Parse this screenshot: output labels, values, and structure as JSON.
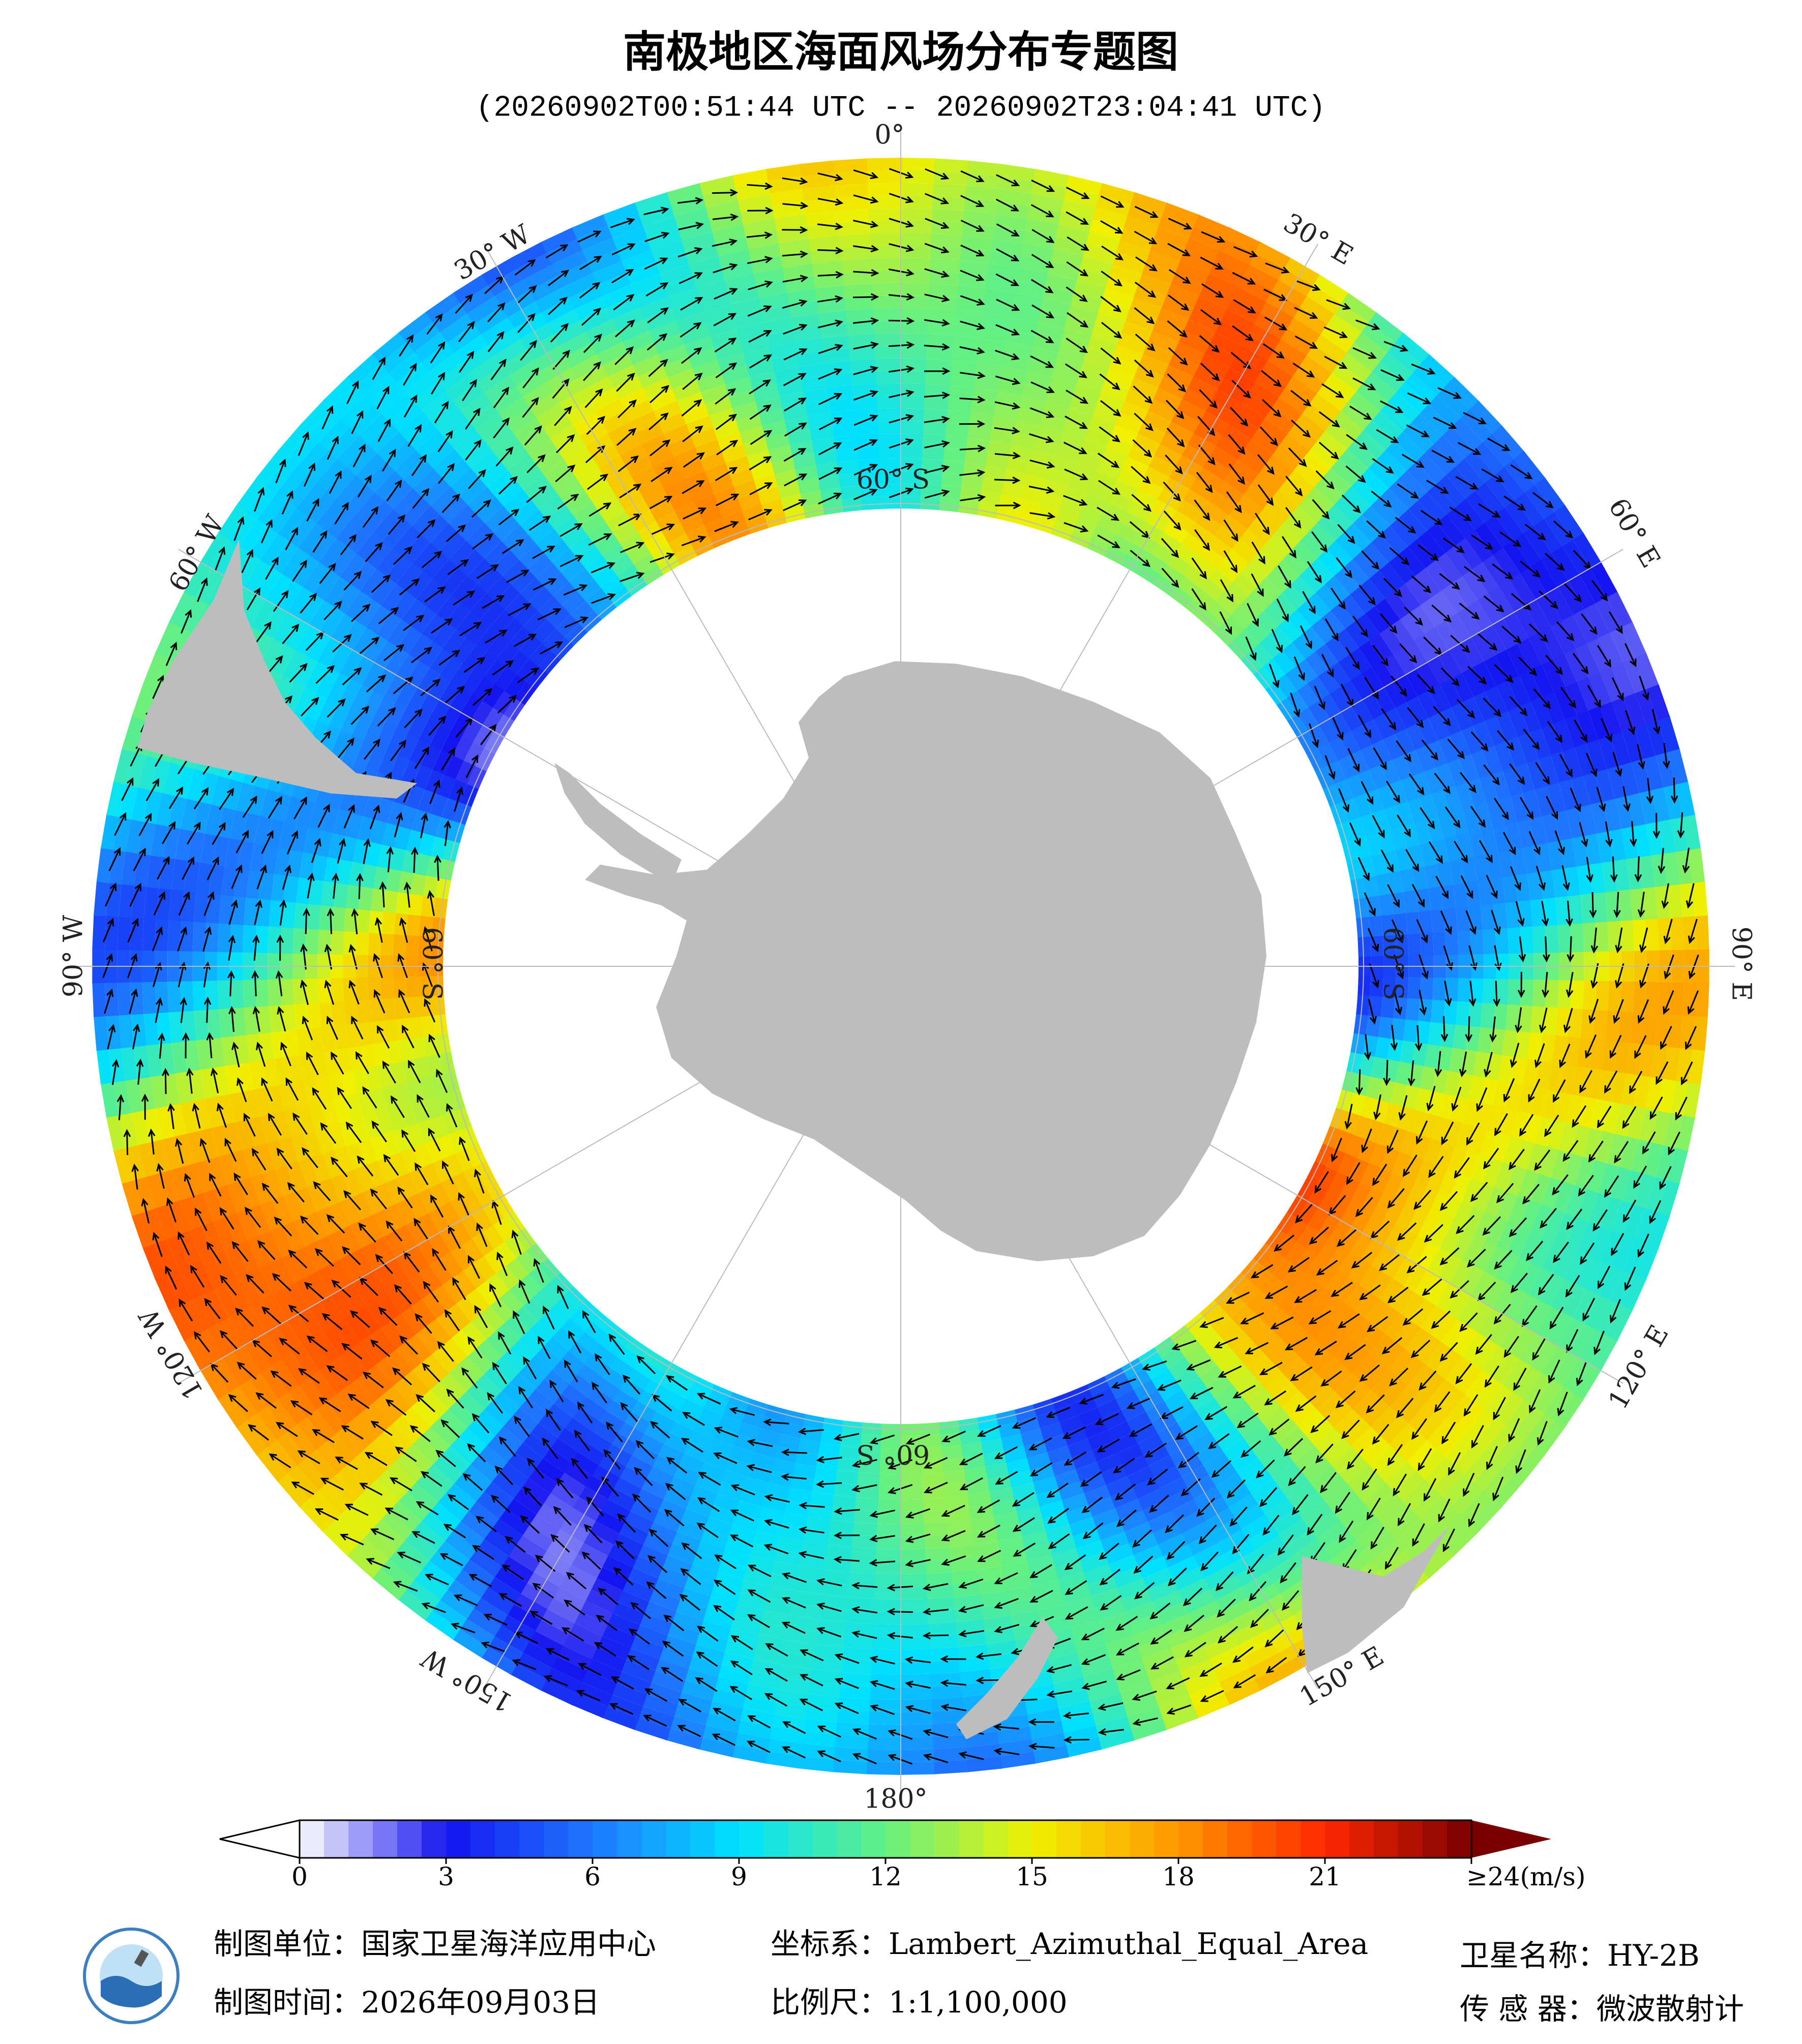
{
  "header": {
    "title": "南极地区海面风场分布专题图",
    "subtitle": "(20260902T00:51:44 UTC -- 20260902T23:04:41 UTC)"
  },
  "map": {
    "longitude_labels": [
      "0°",
      "30° E",
      "60° E",
      "90° E",
      "120° E",
      "150° E",
      "180°",
      "150° W",
      "120° W",
      "90° W",
      "60° W",
      "30° W"
    ],
    "latitude_labels": [
      "60° S",
      "60° S",
      "60° S",
      "60° S"
    ]
  },
  "colorbar": {
    "lim": [
      0,
      24
    ],
    "ticks": [
      0,
      3,
      6,
      9,
      12,
      15,
      18,
      21,
      {
        "value": 24,
        "label": "≥24(m/s)"
      }
    ]
  },
  "footer": {
    "unit": "制图单位：国家卫星海洋应用中心",
    "date": "制图时间：2026年09月03日",
    "crs": "坐标系：Lambert_Azimuthal_Equal_Area",
    "scale": "比例尺：1:1,100,000",
    "satellite": "卫星名称：HY-2B",
    "sensor": "传 感 器：微波散射计"
  }
}
